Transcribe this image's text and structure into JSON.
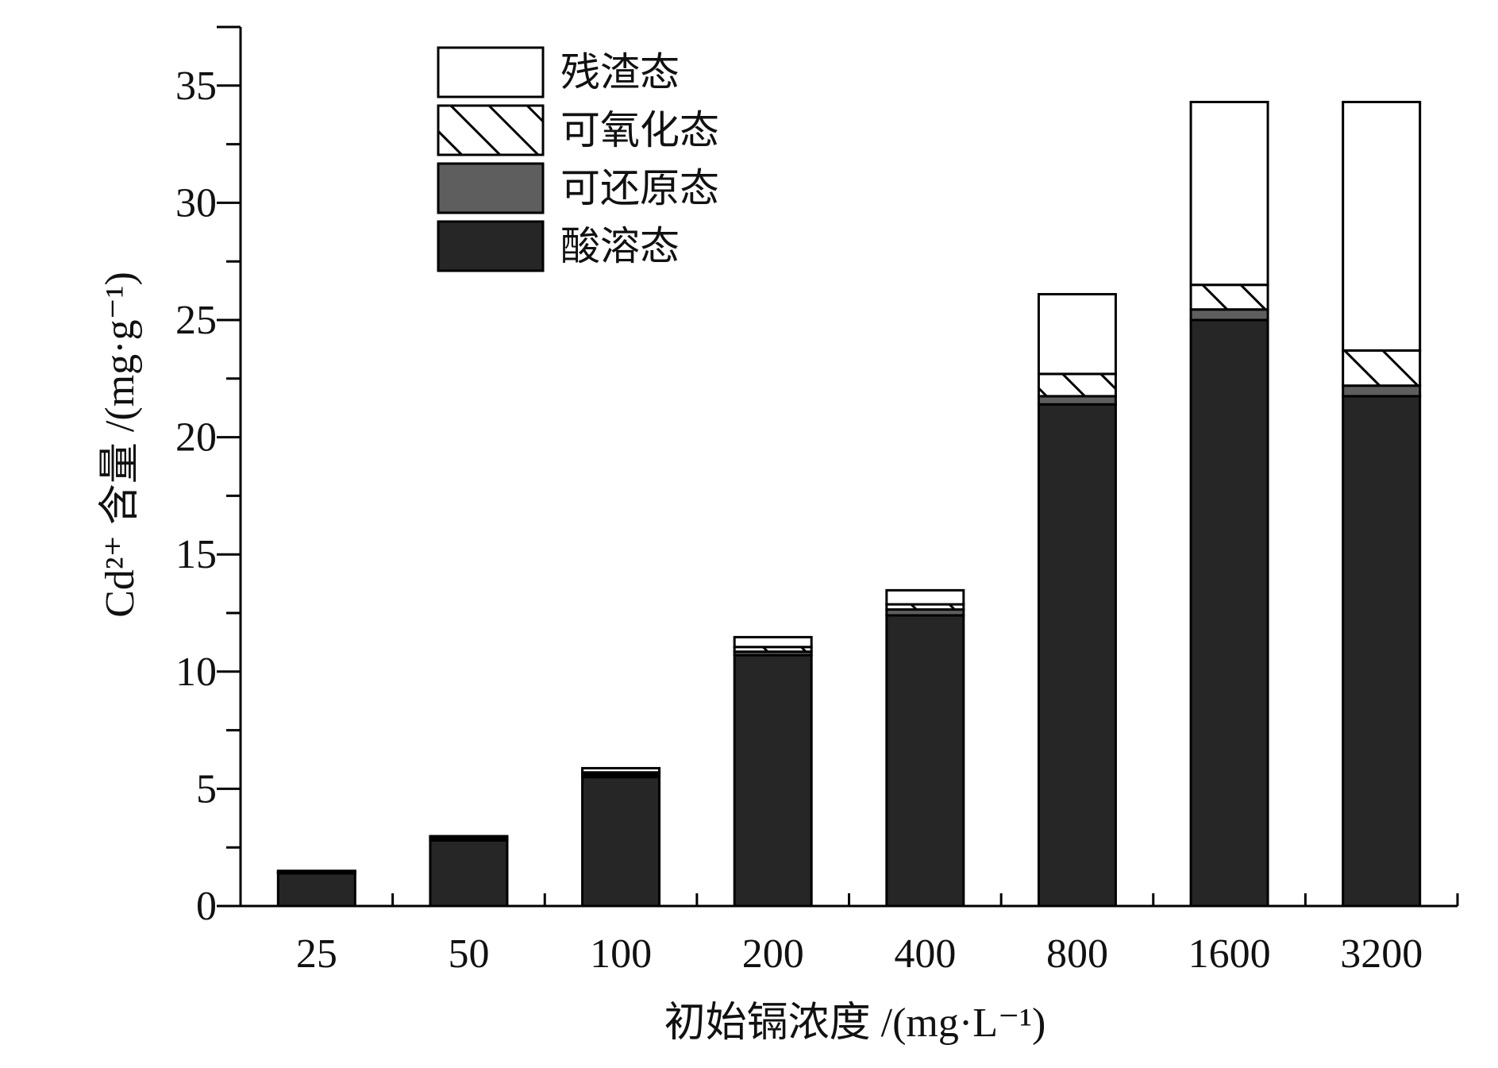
{
  "chart_data": {
    "type": "bar",
    "stacked": true,
    "title": "",
    "xlabel": "初始镉浓度 /(mg·L⁻¹)",
    "ylabel": "Cd²⁺ 含量 /(mg·g⁻¹)",
    "ylim": [
      0,
      37.5
    ],
    "yticks": [
      0,
      5,
      10,
      15,
      20,
      25,
      30,
      35
    ],
    "categories": [
      "25",
      "50",
      "100",
      "200",
      "400",
      "800",
      "1600",
      "3200"
    ],
    "legend_position": "top-left",
    "series": [
      {
        "name": "酸溶态",
        "fill": "#262626",
        "pattern": "solid",
        "values": [
          1.4,
          2.8,
          5.5,
          10.7,
          12.4,
          21.4,
          25.0,
          21.75
        ]
      },
      {
        "name": "可还原态",
        "fill": "#5e5e5e",
        "pattern": "solid",
        "values": [
          0.05,
          0.1,
          0.1,
          0.15,
          0.25,
          0.35,
          0.45,
          0.45
        ]
      },
      {
        "name": "可氧化态",
        "fill": "#ffffff",
        "pattern": "hatch",
        "values": [
          0.02,
          0.05,
          0.1,
          0.2,
          0.22,
          0.95,
          1.05,
          1.5
        ]
      },
      {
        "name": "残渣态",
        "fill": "#ffffff",
        "pattern": "solid",
        "values": [
          0.03,
          0.03,
          0.18,
          0.42,
          0.6,
          3.4,
          7.8,
          10.6
        ]
      }
    ]
  }
}
